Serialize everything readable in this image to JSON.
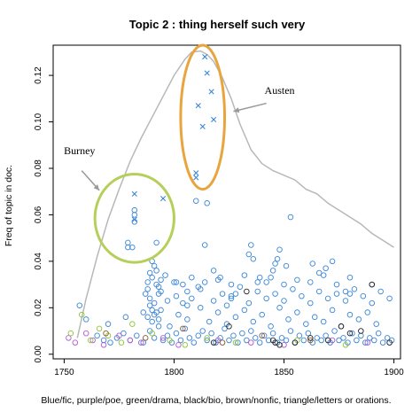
{
  "chart_data": {
    "type": "scatter",
    "title": "Topic 2 : thing herself such very",
    "xlabel": "",
    "ylabel": "Freq of topic in doc.",
    "caption": "Blue/fic, purple/poe, green/drama, black/bio, brown/nonfic, triangle/letters or orations.",
    "xlim": [
      1745,
      1903
    ],
    "ylim": [
      -0.002,
      0.133
    ],
    "x_ticks": [
      1750,
      1800,
      1850,
      1900
    ],
    "y_ticks": [
      0.0,
      0.02,
      0.04,
      0.06,
      0.08,
      0.1,
      0.12
    ],
    "x_tick_labels": [
      "1750",
      "1800",
      "1850",
      "1900"
    ],
    "y_tick_labels": [
      "0.00",
      "0.02",
      "0.04",
      "0.06",
      "0.08",
      "0.10",
      "0.12"
    ],
    "grid": false,
    "colors": {
      "fic": "#3a86d6",
      "poe": "#b45ad0",
      "drama": "#8fc43a",
      "bio": "#222222",
      "nonfic": "#8b5a2b",
      "curve": "#b8b8b8",
      "austen_ellipse": "#e8a53d",
      "burney_ellipse": "#b5cf5a",
      "arrow": "#999999"
    },
    "series": [
      {
        "genre": "fic",
        "marker": "x",
        "x": [
          1782,
          1782,
          1795,
          1810,
          1810,
          1811,
          1813,
          1814,
          1815,
          1817,
          1818
        ],
        "y": [
          0.069,
          0.058,
          0.067,
          0.076,
          0.078,
          0.107,
          0.098,
          0.128,
          0.121,
          0.113,
          0.101
        ]
      },
      {
        "genre": "fic",
        "marker": "o",
        "x": [
          1782,
          1782,
          1782,
          1779,
          1779,
          1781,
          1792,
          1810,
          1815,
          1853,
          1848,
          1757,
          1765,
          1768,
          1771,
          1774,
          1777,
          1780,
          1783,
          1786,
          1789,
          1791,
          1793,
          1795,
          1797,
          1799,
          1801,
          1803,
          1805,
          1807,
          1809,
          1811,
          1813,
          1815,
          1817,
          1819,
          1821,
          1823,
          1825,
          1827,
          1829,
          1831,
          1833,
          1835,
          1837,
          1839,
          1841,
          1843,
          1845,
          1847,
          1849,
          1851,
          1853,
          1855,
          1857,
          1859,
          1861,
          1863,
          1865,
          1867,
          1869,
          1871,
          1873,
          1875,
          1877,
          1879,
          1881,
          1883,
          1885,
          1887,
          1889,
          1891,
          1893,
          1895,
          1897,
          1899,
          1760,
          1770,
          1778,
          1786,
          1790,
          1794,
          1798,
          1802,
          1806,
          1812,
          1816,
          1820,
          1824,
          1828,
          1832,
          1836,
          1840,
          1844,
          1848,
          1852,
          1856,
          1860,
          1864,
          1868,
          1872,
          1876,
          1880,
          1884,
          1888,
          1892,
          1789,
          1791,
          1793,
          1797,
          1801,
          1804,
          1806,
          1808,
          1812,
          1818,
          1822,
          1826,
          1830,
          1834,
          1838,
          1842,
          1846,
          1850,
          1854,
          1858,
          1862,
          1866,
          1870,
          1874,
          1878,
          1882,
          1886,
          1890,
          1894,
          1898,
          1788,
          1790,
          1792,
          1794,
          1796,
          1800,
          1804,
          1808,
          1814,
          1820,
          1826,
          1832,
          1838,
          1844,
          1850,
          1856,
          1862,
          1868,
          1874,
          1880,
          1789,
          1790,
          1791,
          1792,
          1787,
          1788,
          1793,
          1794,
          1790,
          1791,
          1789,
          1792,
          1788,
          1793,
          1834,
          1836,
          1835,
          1846,
          1845,
          1847,
          1839,
          1866,
          1826,
          1824,
          1828,
          1842,
          1880,
          1878,
          1890,
          1863,
          1869,
          1872,
          1851,
          1818,
          1821,
          1814,
          1806,
          1801,
          1811
        ],
        "y": [
          0.062,
          0.06,
          0.057,
          0.048,
          0.046,
          0.046,
          0.048,
          0.066,
          0.065,
          0.059,
          0.045,
          0.021,
          0.008,
          0.006,
          0.005,
          0.007,
          0.009,
          0.006,
          0.008,
          0.005,
          0.01,
          0.007,
          0.012,
          0.006,
          0.008,
          0.005,
          0.009,
          0.006,
          0.011,
          0.007,
          0.005,
          0.008,
          0.01,
          0.006,
          0.009,
          0.005,
          0.007,
          0.011,
          0.006,
          0.008,
          0.005,
          0.009,
          0.006,
          0.01,
          0.007,
          0.005,
          0.008,
          0.006,
          0.009,
          0.005,
          0.007,
          0.006,
          0.01,
          0.005,
          0.008,
          0.006,
          0.009,
          0.005,
          0.007,
          0.006,
          0.008,
          0.005,
          0.01,
          0.006,
          0.007,
          0.005,
          0.009,
          0.006,
          0.008,
          0.005,
          0.007,
          0.006,
          0.009,
          0.005,
          0.007,
          0.006,
          0.015,
          0.013,
          0.016,
          0.018,
          0.014,
          0.019,
          0.012,
          0.017,
          0.015,
          0.02,
          0.014,
          0.018,
          0.013,
          0.016,
          0.019,
          0.014,
          0.017,
          0.012,
          0.02,
          0.015,
          0.018,
          0.013,
          0.016,
          0.014,
          0.019,
          0.012,
          0.017,
          0.015,
          0.018,
          0.013,
          0.024,
          0.022,
          0.026,
          0.023,
          0.025,
          0.022,
          0.027,
          0.024,
          0.028,
          0.023,
          0.026,
          0.025,
          0.029,
          0.022,
          0.027,
          0.024,
          0.026,
          0.023,
          0.028,
          0.025,
          0.022,
          0.027,
          0.024,
          0.026,
          0.023,
          0.028,
          0.025,
          0.022,
          0.027,
          0.024,
          0.031,
          0.033,
          0.03,
          0.032,
          0.034,
          0.031,
          0.03,
          0.033,
          0.031,
          0.032,
          0.03,
          0.034,
          0.031,
          0.033,
          0.03,
          0.032,
          0.031,
          0.034,
          0.03,
          0.033,
          0.035,
          0.04,
          0.038,
          0.036,
          0.026,
          0.028,
          0.029,
          0.027,
          0.019,
          0.017,
          0.021,
          0.018,
          0.016,
          0.015,
          0.043,
          0.041,
          0.047,
          0.039,
          0.036,
          0.041,
          0.033,
          0.035,
          0.024,
          0.021,
          0.026,
          0.031,
          0.026,
          0.027,
          0.03,
          0.039,
          0.037,
          0.04,
          0.038,
          0.036,
          0.033,
          0.047,
          0.021,
          0.031,
          0.029
        ]
      },
      {
        "genre": "poe",
        "marker": "o",
        "x": [
          1752,
          1755,
          1760,
          1763,
          1768,
          1775,
          1780,
          1785,
          1795,
          1802,
          1820,
          1835,
          1850,
          1872,
          1888
        ],
        "y": [
          0.007,
          0.005,
          0.009,
          0.006,
          0.004,
          0.008,
          0.006,
          0.005,
          0.007,
          0.004,
          0.006,
          0.005,
          0.004,
          0.006,
          0.005
        ]
      },
      {
        "genre": "drama",
        "marker": "o",
        "x": [
          1753,
          1758,
          1762,
          1766,
          1770,
          1776,
          1781,
          1790,
          1798,
          1805,
          1815,
          1828,
          1856,
          1878
        ],
        "y": [
          0.009,
          0.017,
          0.006,
          0.011,
          0.008,
          0.005,
          0.013,
          0.009,
          0.006,
          0.004,
          0.007,
          0.005,
          0.006,
          0.004
        ]
      },
      {
        "genre": "bio",
        "marker": "o",
        "x": [
          1818,
          1825,
          1833,
          1845,
          1846,
          1848,
          1855,
          1862,
          1870,
          1876,
          1885,
          1890,
          1898,
          1880
        ],
        "y": [
          0.005,
          0.012,
          0.027,
          0.006,
          0.005,
          0.004,
          0.005,
          0.007,
          0.006,
          0.012,
          0.01,
          0.03,
          0.005,
          0.009
        ]
      },
      {
        "genre": "nonfic",
        "marker": "o",
        "x": [
          1769,
          1787,
          1804,
          1822,
          1840,
          1862
        ],
        "y": [
          0.009,
          0.007,
          0.011,
          0.005,
          0.008,
          0.006
        ]
      }
    ],
    "curve": {
      "x": [
        1756,
        1760,
        1765,
        1770,
        1775,
        1780,
        1785,
        1790,
        1795,
        1800,
        1805,
        1808,
        1812,
        1815,
        1818,
        1822,
        1826,
        1830,
        1835,
        1840,
        1845,
        1850,
        1855,
        1860,
        1865,
        1870,
        1875,
        1880,
        1885,
        1890,
        1895,
        1900
      ],
      "y": [
        0.007,
        0.024,
        0.042,
        0.058,
        0.071,
        0.083,
        0.093,
        0.102,
        0.111,
        0.12,
        0.127,
        0.13,
        0.1305,
        0.129,
        0.126,
        0.119,
        0.11,
        0.099,
        0.088,
        0.082,
        0.079,
        0.077,
        0.075,
        0.071,
        0.069,
        0.065,
        0.062,
        0.059,
        0.056,
        0.052,
        0.049,
        0.046
      ]
    },
    "annotations": [
      {
        "text": "Austen",
        "x": 1848,
        "y": 0.112
      },
      {
        "text": "Burney",
        "x": 1757,
        "y": 0.086
      }
    ],
    "highlights": [
      {
        "label": "Austen",
        "cx": 1813,
        "cy": 0.102,
        "rx": 10,
        "ry": 0.031
      },
      {
        "label": "Burney",
        "cx": 1782,
        "cy": 0.0585,
        "rx": 18,
        "ry": 0.019
      }
    ],
    "arrows": [
      {
        "from": [
          1842,
          0.108
        ],
        "to": [
          1827,
          0.1045
        ]
      },
      {
        "from": [
          1758,
          0.079
        ],
        "to": [
          1766,
          0.0705
        ]
      }
    ]
  }
}
